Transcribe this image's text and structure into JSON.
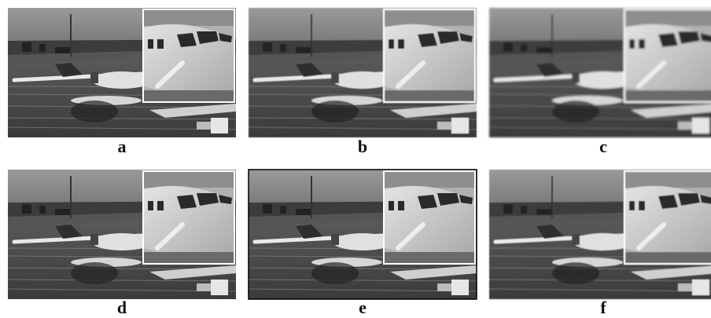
{
  "panels": [
    {
      "label": "a"
    },
    {
      "label": "b"
    },
    {
      "label": "c"
    },
    {
      "label": "d"
    },
    {
      "label": "e"
    },
    {
      "label": "f"
    }
  ]
}
